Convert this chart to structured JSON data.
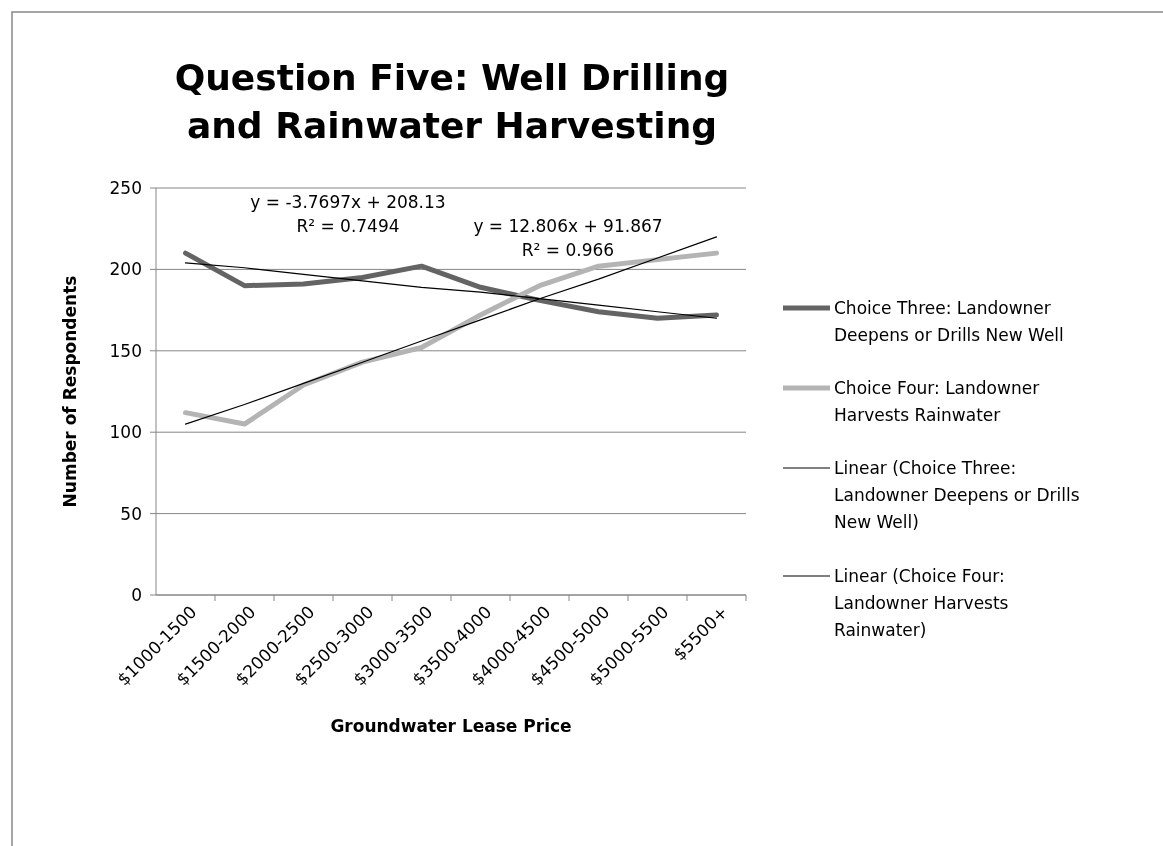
{
  "chart_data": {
    "type": "line",
    "title": "Question Five: Well Drilling\nand Rainwater Harvesting",
    "xlabel": "Groundwater Lease Price",
    "ylabel": "Number of Respondents",
    "categories": [
      "$1000-1500",
      "$1500-2000",
      "$2000-2500",
      "$2500-3000",
      "$3000-3500",
      "$3500-4000",
      "$4000-4500",
      "$4500-5000",
      "$5000-5500",
      "$5500+"
    ],
    "series": [
      {
        "name": "Choice Three: Landowner Deepens or Drills New Well",
        "color": "#646464",
        "values": [
          210,
          190,
          191,
          195,
          202,
          189,
          181,
          174,
          170,
          172
        ]
      },
      {
        "name": "Choice Four: Landowner Harvests Rainwater",
        "color": "#b4b4b4",
        "values": [
          112,
          105,
          129,
          143,
          152,
          172,
          190,
          202,
          206,
          210
        ]
      },
      {
        "name": "Linear (Choice Three: Landowner Deepens or Drills New Well)",
        "color": "#000000",
        "values": [
          204,
          201,
          197,
          193,
          189,
          186,
          182,
          178,
          174,
          170
        ]
      },
      {
        "name": "Linear (Choice Four: Landowner Harvests Rainwater)",
        "color": "#000000",
        "values": [
          105,
          117,
          130,
          143,
          156,
          169,
          182,
          194,
          207,
          220
        ]
      }
    ],
    "annotations": [
      "y = -3.7697x + 208.13\nR² = 0.7494",
      "y = 12.806x + 91.867\nR² = 0.966"
    ],
    "ylim": [
      0,
      250
    ],
    "yticks": [
      0,
      50,
      100,
      150,
      200,
      250
    ],
    "grid": "y",
    "legend": "right",
    "marker": "none",
    "line_style": "solid"
  }
}
